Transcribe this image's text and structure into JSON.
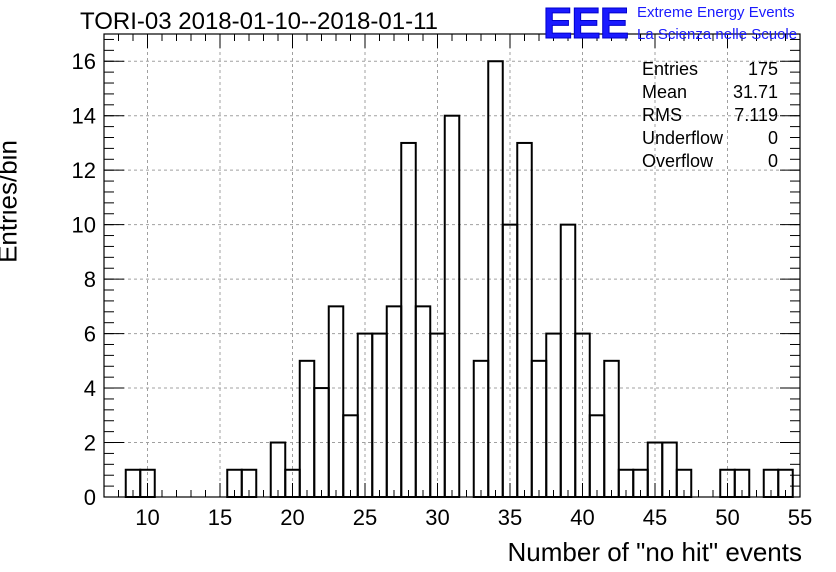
{
  "chart_data": {
    "type": "bar",
    "title": "TORI-03 2018-01-10--2018-01-11",
    "xlabel": "Number of \"no hit\" events",
    "ylabel": "Entries/bin",
    "xlim": [
      7,
      55
    ],
    "ylim": [
      0,
      17
    ],
    "xticks": [
      10,
      15,
      20,
      25,
      30,
      35,
      40,
      45,
      50,
      55
    ],
    "yticks": [
      0,
      2,
      4,
      6,
      8,
      10,
      12,
      14,
      16
    ],
    "grid": true,
    "bin_width": 1,
    "bins": [
      {
        "x": 9,
        "value": 1
      },
      {
        "x": 10,
        "value": 1
      },
      {
        "x": 16,
        "value": 1
      },
      {
        "x": 17,
        "value": 1
      },
      {
        "x": 19,
        "value": 2
      },
      {
        "x": 20,
        "value": 1
      },
      {
        "x": 21,
        "value": 5
      },
      {
        "x": 22,
        "value": 4
      },
      {
        "x": 23,
        "value": 7
      },
      {
        "x": 24,
        "value": 3
      },
      {
        "x": 25,
        "value": 6
      },
      {
        "x": 26,
        "value": 6
      },
      {
        "x": 27,
        "value": 7
      },
      {
        "x": 28,
        "value": 13
      },
      {
        "x": 29,
        "value": 7
      },
      {
        "x": 30,
        "value": 6
      },
      {
        "x": 31,
        "value": 14
      },
      {
        "x": 33,
        "value": 5
      },
      {
        "x": 34,
        "value": 16
      },
      {
        "x": 35,
        "value": 10
      },
      {
        "x": 36,
        "value": 13
      },
      {
        "x": 37,
        "value": 5
      },
      {
        "x": 38,
        "value": 6
      },
      {
        "x": 39,
        "value": 10
      },
      {
        "x": 40,
        "value": 6
      },
      {
        "x": 41,
        "value": 3
      },
      {
        "x": 42,
        "value": 5
      },
      {
        "x": 43,
        "value": 1
      },
      {
        "x": 44,
        "value": 1
      },
      {
        "x": 45,
        "value": 2
      },
      {
        "x": 46,
        "value": 2
      },
      {
        "x": 47,
        "value": 1
      },
      {
        "x": 50,
        "value": 1
      },
      {
        "x": 51,
        "value": 1
      },
      {
        "x": 53,
        "value": 1
      },
      {
        "x": 54,
        "value": 1
      }
    ],
    "stats": [
      {
        "label": "Entries",
        "value": "175"
      },
      {
        "label": "Mean",
        "value": "31.71"
      },
      {
        "label": "RMS",
        "value": "7.119"
      },
      {
        "label": "Underflow",
        "value": "0"
      },
      {
        "label": "Overflow",
        "value": "0"
      }
    ],
    "bar_color": "#000000",
    "grid_color": "#a0a0a0"
  },
  "logo": {
    "mark": "EEE",
    "line1": "Extreme Energy Events",
    "line2": "La Scienza nelle Scuole",
    "color": "#1a1aff"
  }
}
